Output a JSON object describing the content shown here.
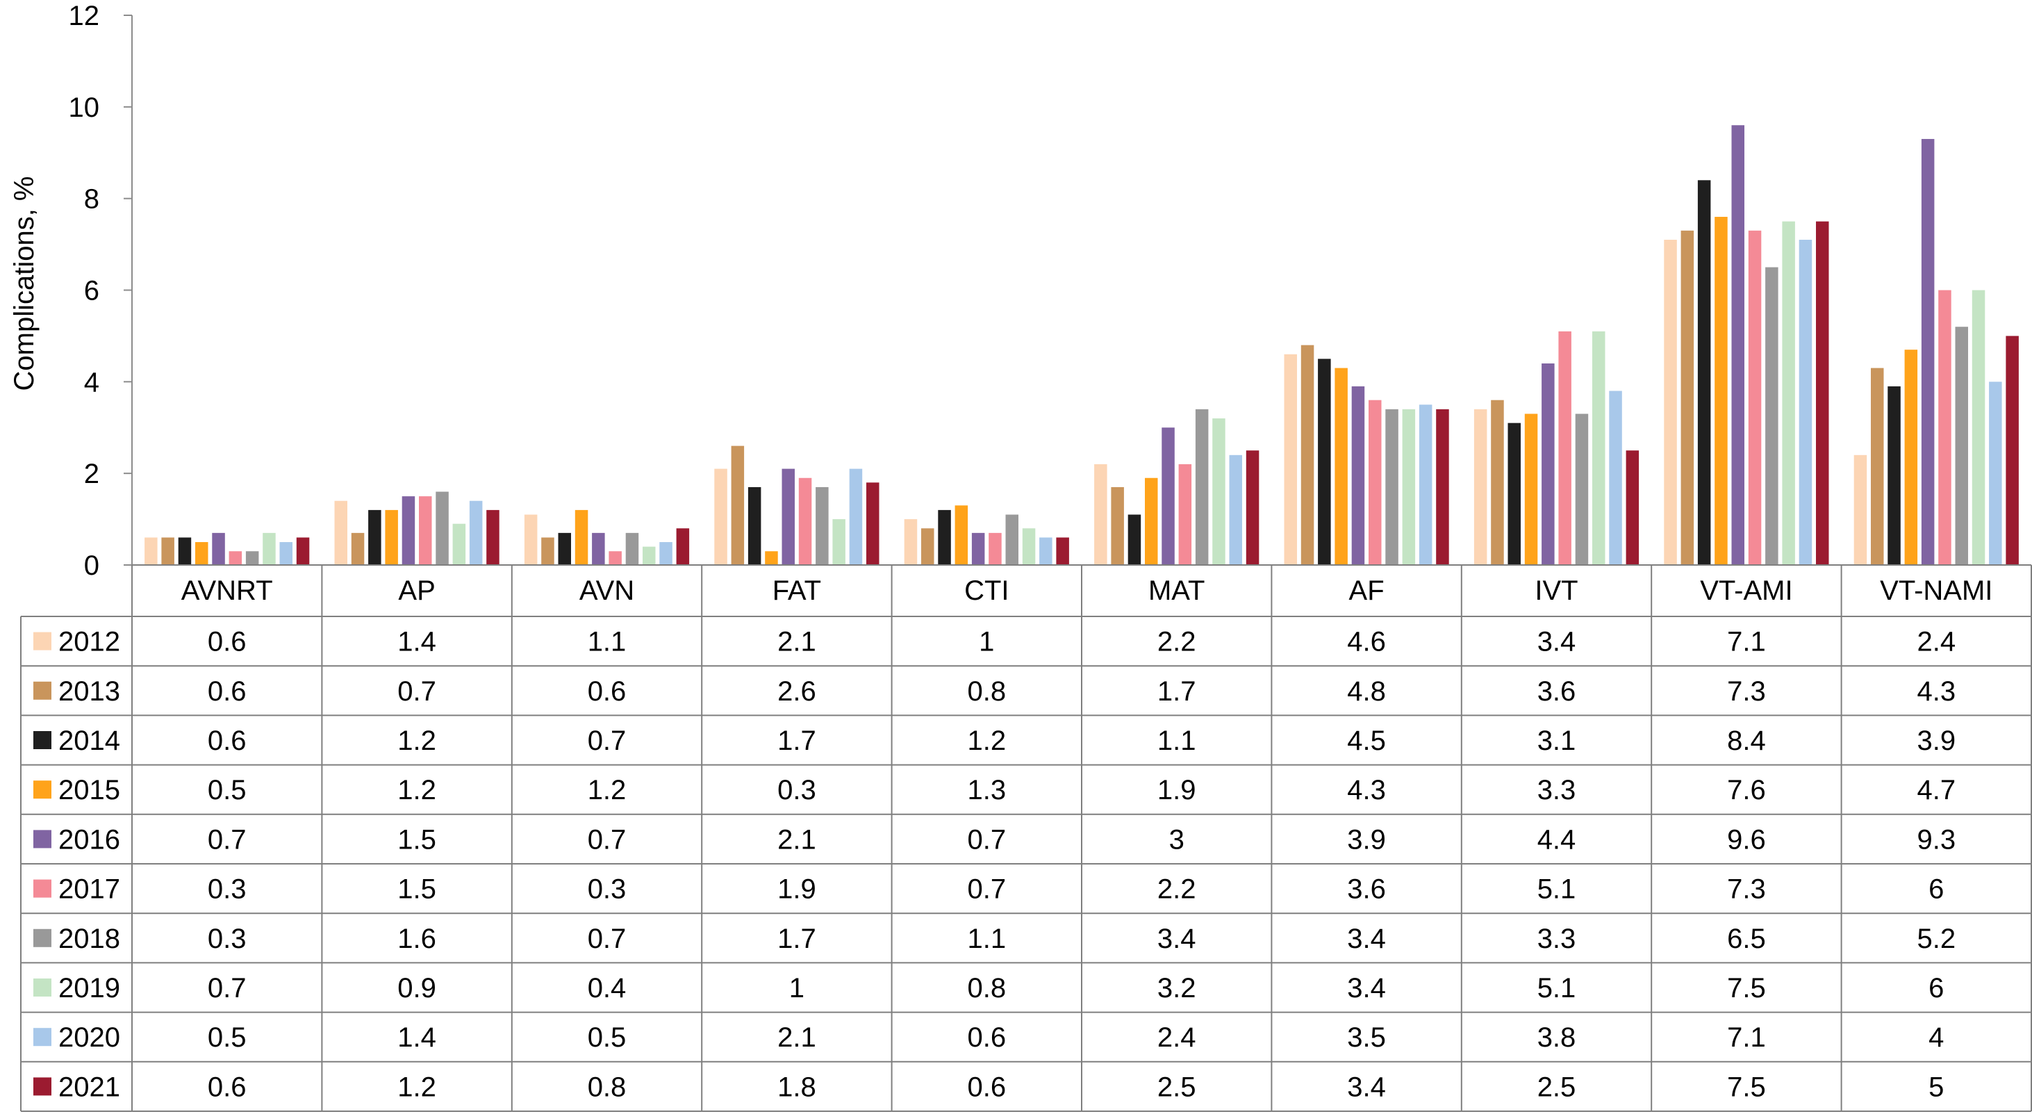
{
  "chart_data": {
    "type": "bar",
    "ylabel": "Complications, %",
    "ylim": [
      0,
      12
    ],
    "yticks": [
      0,
      2,
      4,
      6,
      8,
      10,
      12
    ],
    "grid": false,
    "legend": "data table below chart",
    "categories": [
      "AVNRT",
      "AP",
      "AVN",
      "FAT",
      "CTI",
      "MAT",
      "AF",
      "IVT",
      "VT-AMI",
      "VT-NAMI"
    ],
    "series": [
      {
        "name": "2012",
        "color": "#fcd5b4",
        "values": [
          0.6,
          1.4,
          1.1,
          2.1,
          1,
          2.2,
          4.6,
          3.4,
          7.1,
          2.4
        ]
      },
      {
        "name": "2013",
        "color": "#c9955c",
        "values": [
          0.6,
          0.7,
          0.6,
          2.6,
          0.8,
          1.7,
          4.8,
          3.6,
          7.3,
          4.3
        ]
      },
      {
        "name": "2014",
        "color": "#1f1f1f",
        "values": [
          0.6,
          1.2,
          0.7,
          1.7,
          1.2,
          1.1,
          4.5,
          3.1,
          8.4,
          3.9
        ]
      },
      {
        "name": "2015",
        "color": "#ffa31a",
        "values": [
          0.5,
          1.2,
          1.2,
          0.3,
          1.3,
          1.9,
          4.3,
          3.3,
          7.6,
          4.7
        ]
      },
      {
        "name": "2016",
        "color": "#8064a2",
        "values": [
          0.7,
          1.5,
          0.7,
          2.1,
          0.7,
          3,
          3.9,
          4.4,
          9.6,
          9.3
        ]
      },
      {
        "name": "2017",
        "color": "#f48a96",
        "values": [
          0.3,
          1.5,
          0.3,
          1.9,
          0.7,
          2.2,
          3.6,
          5.1,
          7.3,
          6
        ]
      },
      {
        "name": "2018",
        "color": "#999999",
        "values": [
          0.3,
          1.6,
          0.7,
          1.7,
          1.1,
          3.4,
          3.4,
          3.3,
          6.5,
          5.2
        ]
      },
      {
        "name": "2019",
        "color": "#c4e4c4",
        "values": [
          0.7,
          0.9,
          0.4,
          1,
          0.8,
          3.2,
          3.4,
          5.1,
          7.5,
          6
        ]
      },
      {
        "name": "2020",
        "color": "#a8c8ea",
        "values": [
          0.5,
          1.4,
          0.5,
          2.1,
          0.6,
          2.4,
          3.5,
          3.8,
          7.1,
          4
        ]
      },
      {
        "name": "2021",
        "color": "#9b1b30",
        "values": [
          0.6,
          1.2,
          0.8,
          1.8,
          0.6,
          2.5,
          3.4,
          2.5,
          7.5,
          5
        ]
      }
    ]
  }
}
